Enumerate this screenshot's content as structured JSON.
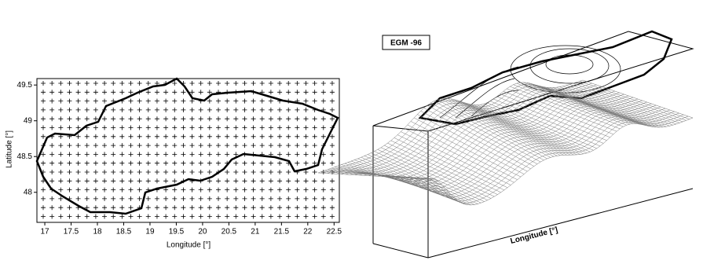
{
  "chart_data": [
    {
      "type": "map",
      "xlabel": "Longitude [°]",
      "ylabel": "Latitude [°]",
      "xlim": [
        16.85,
        22.6
      ],
      "ylim": [
        47.58,
        49.59
      ],
      "xticks": [
        17,
        17.5,
        18,
        18.5,
        19,
        19.5,
        20,
        20.5,
        21,
        21.5,
        22,
        22.5
      ],
      "yticks": [
        48,
        48.5,
        49,
        49.5
      ]
    },
    {
      "type": "surface",
      "title": "EGM -96",
      "xlabel": "Longitude [°]"
    }
  ]
}
